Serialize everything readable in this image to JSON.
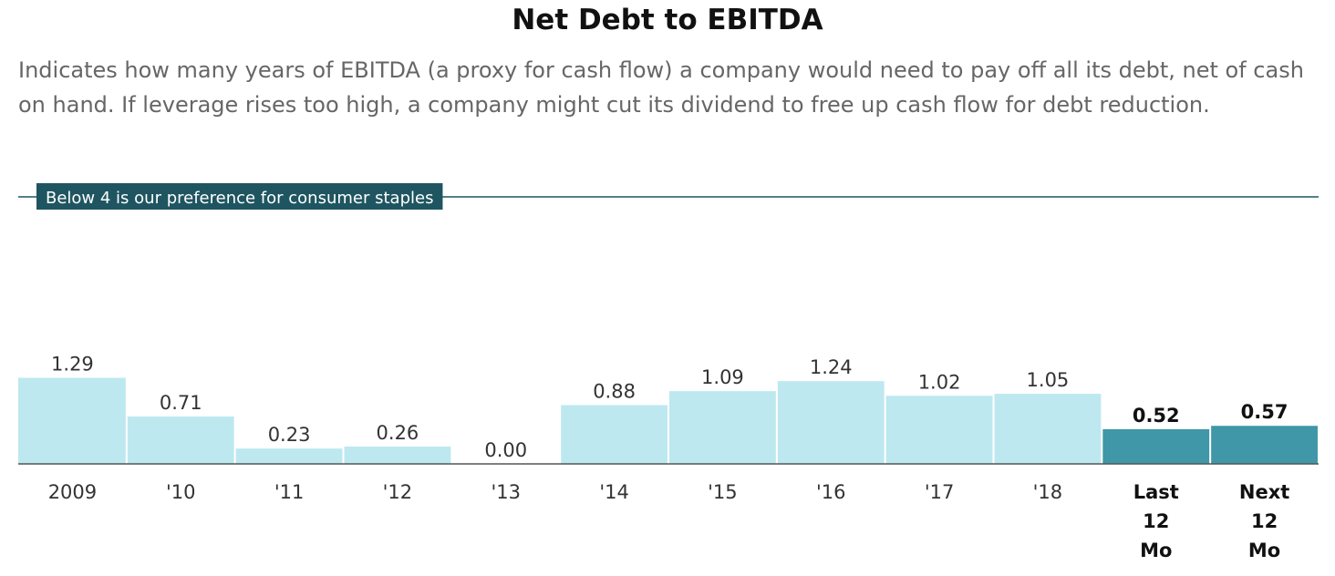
{
  "chart_data": {
    "type": "bar",
    "title": "Net Debt to EBITDA",
    "subtitle": "Indicates how many years of EBITDA (a proxy for cash flow) a company would need to pay off all its debt, net of cash on hand. If leverage rises too high, a company might cut its dividend to free up cash flow for debt reduction.",
    "categories": [
      "2009",
      "'10",
      "'11",
      "'12",
      "'13",
      "'14",
      "'15",
      "'16",
      "'17",
      "'18",
      "Last 12 Mo",
      "Next 12 Mo"
    ],
    "values": [
      1.29,
      0.71,
      0.23,
      0.26,
      0.0,
      0.88,
      1.09,
      1.24,
      1.02,
      1.05,
      0.52,
      0.57
    ],
    "value_labels": [
      "1.29",
      "0.71",
      "0.23",
      "0.26",
      "0.00",
      "0.88",
      "1.09",
      "1.24",
      "1.02",
      "1.05",
      "0.52",
      "0.57"
    ],
    "highlighted": [
      false,
      false,
      false,
      false,
      false,
      false,
      false,
      false,
      false,
      false,
      true,
      true
    ],
    "reference_line": {
      "value": 4,
      "label": "Below 4 is our preference for consumer staples"
    },
    "ylim": [
      0,
      4
    ],
    "grid": false,
    "colors": {
      "bar": "#bde8ef",
      "bar_highlight": "#3f97a8",
      "reference": "#1f5560",
      "axis": "#555555"
    }
  }
}
